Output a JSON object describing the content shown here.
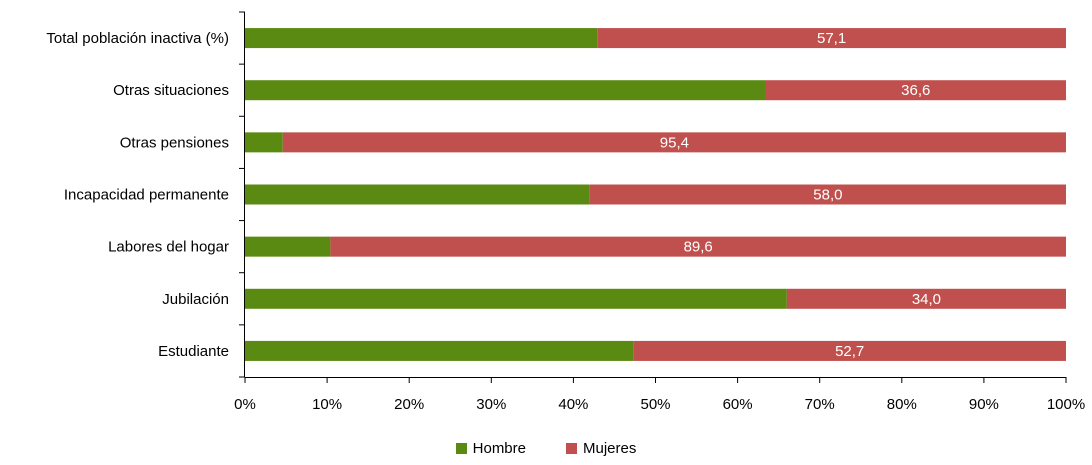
{
  "chart_data": {
    "type": "bar",
    "orientation": "horizontal",
    "stacked": true,
    "percent": true,
    "categories": [
      "Total población inactiva (%)",
      "Otras situaciones",
      "Otras pensiones",
      "Incapacidad permanente",
      "Labores del hogar",
      "Jubilación",
      "Estudiante"
    ],
    "series": [
      {
        "name": "Hombre",
        "values": [
          42.9,
          63.4,
          4.6,
          42.0,
          10.4,
          66.0,
          47.3
        ],
        "color": "#5B8A12"
      },
      {
        "name": "Mujeres",
        "values": [
          57.1,
          36.6,
          95.4,
          58.0,
          89.6,
          34.0,
          52.7
        ],
        "color": "#C0504D",
        "data_labels": [
          "57,1",
          "36,6",
          "95,4",
          "58,0",
          "89,6",
          "34,0",
          "52,7"
        ],
        "data_label_color": "#FFFFFF"
      }
    ],
    "x_ticks": [
      "0%",
      "10%",
      "20%",
      "30%",
      "40%",
      "50%",
      "60%",
      "70%",
      "80%",
      "90%",
      "100%"
    ],
    "xlim": [
      0,
      100
    ],
    "grid": false,
    "legend_position": "bottom",
    "title": "",
    "xlabel": "",
    "ylabel": ""
  }
}
